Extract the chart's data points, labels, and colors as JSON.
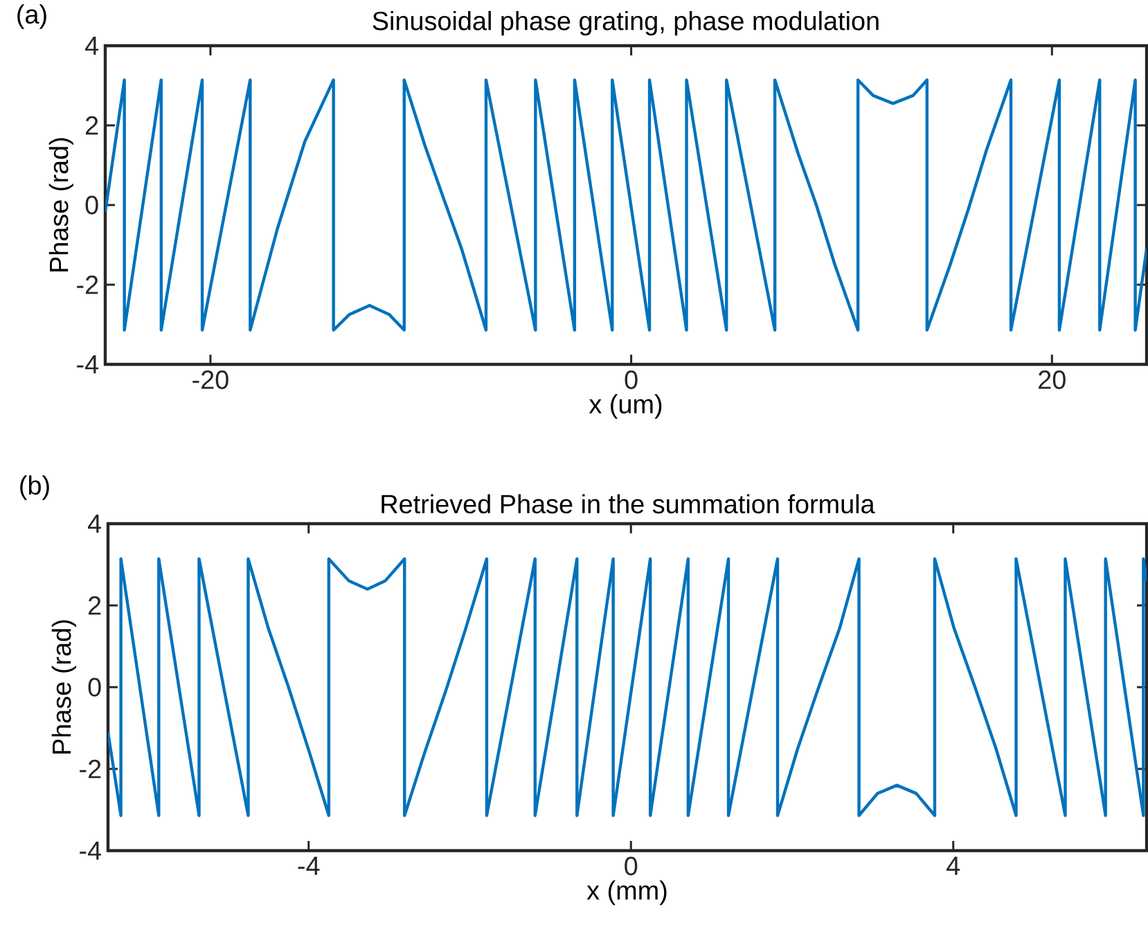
{
  "chart_data": [
    {
      "type": "line",
      "title": "Sinusoidal phase grating, phase modulation",
      "xlabel": "x (um)",
      "ylabel": "Phase (rad)",
      "annotations": [
        "(a)"
      ],
      "color": "#0072bd",
      "xlim": [
        -25,
        24.5
      ],
      "ylim": [
        -4,
        4
      ],
      "xticks": [
        -20,
        0,
        20
      ],
      "yticks": [
        -4,
        -2,
        0,
        2,
        4
      ],
      "x": [
        -25,
        -24.09,
        -24.09,
        -22.34,
        -22.34,
        -20.39,
        -20.39,
        -18.11,
        -18.11,
        -16.82,
        -15.51,
        -14.15,
        -14.15,
        -13.4,
        -12.44,
        -11.5,
        -10.79,
        -10.79,
        -9.81,
        -8.94,
        -8.06,
        -6.9,
        -6.9,
        -4.55,
        -4.55,
        -2.69,
        -2.69,
        -0.9,
        -0.9,
        0.87,
        0.87,
        2.63,
        2.63,
        4.53,
        4.53,
        6.83,
        6.83,
        7.93,
        8.8,
        9.68,
        10.78,
        10.78,
        11.5,
        12.44,
        13.4,
        14.06,
        14.06,
        15.16,
        16.03,
        16.9,
        18.05,
        18.05,
        20.35,
        20.35,
        22.27,
        22.27,
        23.96,
        23.96,
        24.5
      ],
      "values": [
        -0.17,
        3.14,
        -3.14,
        3.14,
        -3.14,
        3.14,
        -3.14,
        3.14,
        -3.14,
        -0.6,
        1.6,
        3.14,
        -3.14,
        -2.75,
        -2.52,
        -2.75,
        -3.14,
        3.14,
        1.5,
        0.2,
        -1.1,
        -3.14,
        3.14,
        -3.14,
        3.14,
        -3.14,
        3.14,
        -3.14,
        3.14,
        -3.14,
        3.14,
        -3.14,
        3.14,
        -3.14,
        3.14,
        -3.14,
        3.14,
        1.3,
        0.0,
        -1.5,
        -3.14,
        3.14,
        2.75,
        2.55,
        2.75,
        3.14,
        -3.14,
        -1.5,
        -0.1,
        1.4,
        3.14,
        -3.14,
        3.14,
        -3.14,
        3.14,
        -3.14,
        3.14,
        -3.14,
        -1.1
      ]
    },
    {
      "type": "line",
      "title": "Retrieved Phase in the summation formula",
      "xlabel": "x (mm)",
      "ylabel": "Phase (rad)",
      "annotations": [
        "(b)"
      ],
      "color": "#0072bd",
      "xlim": [
        -6.49,
        6.4
      ],
      "ylim": [
        -4,
        4
      ],
      "xticks": [
        -4,
        0,
        4
      ],
      "yticks": [
        -4,
        -2,
        0,
        2,
        4
      ],
      "x": [
        -6.49,
        -6.33,
        -6.33,
        -5.86,
        -5.86,
        -5.36,
        -5.36,
        -4.75,
        -4.75,
        -4.5,
        -4.25,
        -3.99,
        -3.75,
        -3.75,
        -3.5,
        -3.27,
        -3.05,
        -2.81,
        -2.81,
        -2.56,
        -2.3,
        -2.05,
        -1.79,
        -1.79,
        -1.19,
        -1.19,
        -0.67,
        -0.67,
        -0.22,
        -0.22,
        0.24,
        0.24,
        0.71,
        0.71,
        1.21,
        1.21,
        1.82,
        1.82,
        2.07,
        2.33,
        2.59,
        2.83,
        2.83,
        3.06,
        3.3,
        3.54,
        3.77,
        3.77,
        4.01,
        4.27,
        4.53,
        4.78,
        4.78,
        5.39,
        5.39,
        5.89,
        5.89,
        6.36,
        6.36,
        6.4
      ],
      "values": [
        -1.11,
        -3.14,
        3.14,
        -3.14,
        3.14,
        -3.14,
        3.14,
        -3.14,
        3.14,
        1.44,
        0.0,
        -1.6,
        -3.14,
        3.14,
        2.6,
        2.4,
        2.6,
        3.14,
        -3.14,
        -1.6,
        -0.1,
        1.44,
        3.14,
        -3.14,
        3.14,
        -3.14,
        3.14,
        -3.14,
        3.14,
        -3.14,
        3.14,
        -3.14,
        3.14,
        -3.14,
        3.14,
        -3.14,
        3.14,
        -3.14,
        -1.5,
        0.0,
        1.44,
        3.14,
        -3.14,
        -2.6,
        -2.4,
        -2.6,
        -3.14,
        3.14,
        1.44,
        0.0,
        -1.5,
        -3.14,
        3.14,
        -3.14,
        3.14,
        -3.14,
        3.14,
        -3.14,
        3.14,
        2.6
      ]
    }
  ]
}
